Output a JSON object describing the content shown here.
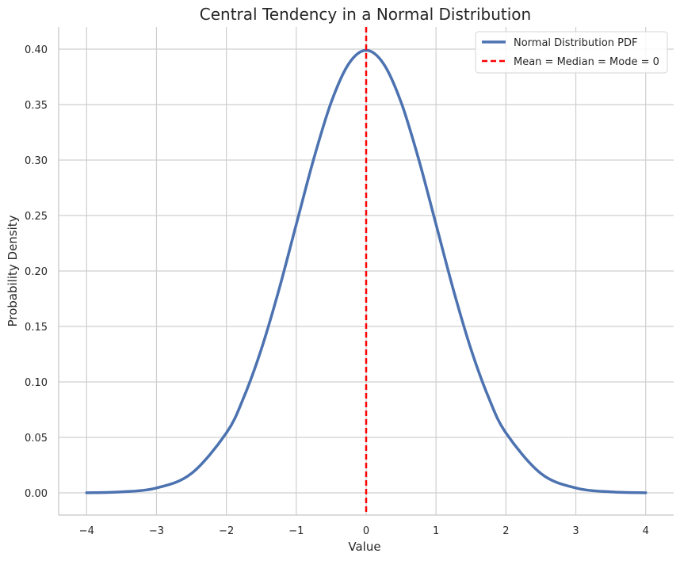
{
  "chart_data": {
    "type": "line",
    "title": "Central Tendency in a Normal Distribution",
    "xlabel": "Value",
    "ylabel": "Probability Density",
    "xlim": [
      -4.4,
      4.4
    ],
    "ylim": [
      -0.02,
      0.42
    ],
    "x_ticks": [
      -4,
      -3,
      -2,
      -1,
      0,
      1,
      2,
      3,
      4
    ],
    "x_tick_labels": [
      "−4",
      "−3",
      "−2",
      "−1",
      "0",
      "1",
      "2",
      "3",
      "4"
    ],
    "y_ticks": [
      0.0,
      0.05,
      0.1,
      0.15,
      0.2,
      0.25,
      0.3,
      0.35,
      0.4
    ],
    "y_tick_labels": [
      "0.00",
      "0.05",
      "0.10",
      "0.15",
      "0.20",
      "0.25",
      "0.30",
      "0.35",
      "0.40"
    ],
    "grid": true,
    "legend_position": "top-right",
    "series": [
      {
        "name": "Normal Distribution PDF",
        "style": "solid",
        "color": "#4c72b0",
        "x": [
          -4.0,
          -3.5,
          -3.0,
          -2.5,
          -2.0,
          -1.75,
          -1.5,
          -1.25,
          -1.0,
          -0.75,
          -0.5,
          -0.25,
          0.0,
          0.25,
          0.5,
          0.75,
          1.0,
          1.25,
          1.5,
          1.75,
          2.0,
          2.5,
          3.0,
          3.5,
          4.0
        ],
        "y": [
          0.0001,
          0.0009,
          0.0044,
          0.0175,
          0.054,
          0.0863,
          0.1295,
          0.1826,
          0.242,
          0.3011,
          0.3521,
          0.3867,
          0.3989,
          0.3867,
          0.3521,
          0.3011,
          0.242,
          0.1826,
          0.1295,
          0.0863,
          0.054,
          0.0175,
          0.0044,
          0.0009,
          0.0001
        ]
      },
      {
        "name": "Mean = Median = Mode = 0",
        "style": "dashed",
        "color": "#ff0000",
        "x_value": 0
      }
    ]
  }
}
